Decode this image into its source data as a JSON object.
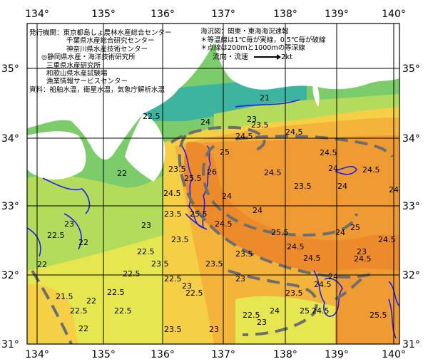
{
  "axes": {
    "lon_labels": [
      "134°",
      "135°",
      "136°",
      "137°",
      "138°",
      "139°",
      "140°"
    ],
    "lat_labels": [
      "35°",
      "34°",
      "33°",
      "32°",
      "31°"
    ]
  },
  "publisher": {
    "label": "発行機関：",
    "agencies": [
      "東京都島しょ農林水産総合センター",
      "千葉県水産総合研究センター",
      "神奈川県水産技術センター",
      "◎静岡県水産・海洋技術研究所",
      "三重県水産研究所",
      "和歌山県水産試験場",
      "漁業情報サービスセンター"
    ],
    "sources": "資料：船舶水温，衛星水温，気象庁解析水温"
  },
  "legend": {
    "area": "海況図：関東・東海海況速報",
    "note1": "＊等温線は1℃毎が実線，0.5℃毎が破線",
    "note2": "＊点線は200ｍと1000ｍの等深線",
    "flow_label": "流向・流速",
    "flow_unit": "2kt"
  },
  "isotherm_labels": [
    "21",
    "23",
    "23.5",
    "24",
    "24.5",
    "22.5",
    "22",
    "23.5",
    "24.5",
    "24",
    "24.5",
    "25",
    "25.5",
    "24.5",
    "23.5",
    "24",
    "24.5",
    "24",
    "25",
    "23.5",
    "24",
    "24.5",
    "25.5",
    "24.5",
    "23.5",
    "23.5",
    "22.5",
    "23",
    "22.5",
    "22",
    "22.5",
    "22",
    "22",
    "22.5",
    "21.5",
    "22",
    "22.5",
    "23.5",
    "22.5",
    "23",
    "22.5",
    "23",
    "24",
    "23.5",
    "25",
    "24.5",
    "24.5",
    "24",
    "25.5",
    "23",
    "24.5",
    "26",
    "24.5",
    "24",
    "23",
    "22.5",
    "22.5",
    "23.5",
    "23",
    "24.5",
    "23.5",
    "23",
    "24.5",
    "24",
    "25.5"
  ],
  "colors": {
    "land": "#ffffff",
    "sst_21": "#3cb4a0",
    "sst_22": "#7ccc6c",
    "sst_22_5": "#b4dc5c",
    "sst_23": "#e6e650",
    "sst_23_5": "#f5d046",
    "sst_24": "#f4b43c",
    "sst_24_5": "#f09a34",
    "sst_25": "#ec8a2c",
    "isobath": "#2020f0",
    "kuroshio_axis": "#6e6e6e"
  }
}
